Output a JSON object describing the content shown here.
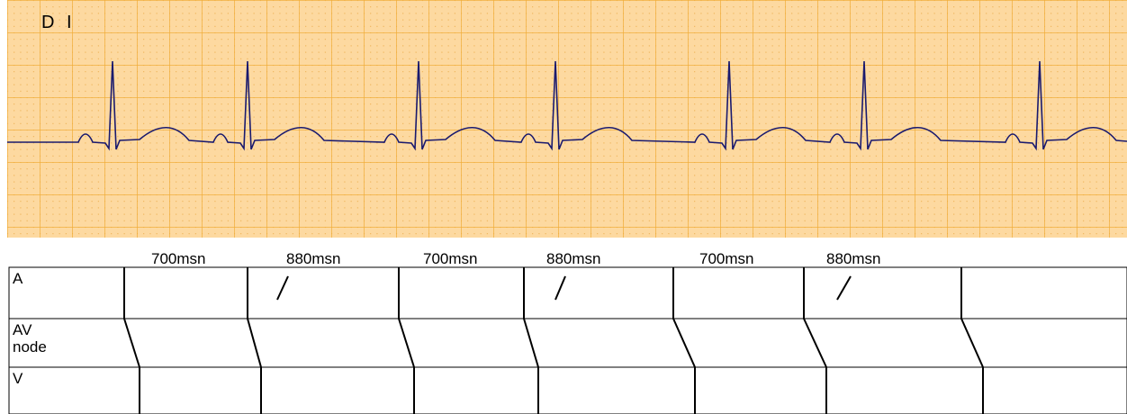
{
  "lead": "D I",
  "intervals": [
    "700msn",
    "880msn",
    "700msn",
    "880msn",
    "700msn",
    "880msn"
  ],
  "rows": [
    "A",
    "AV node",
    "V"
  ]
}
